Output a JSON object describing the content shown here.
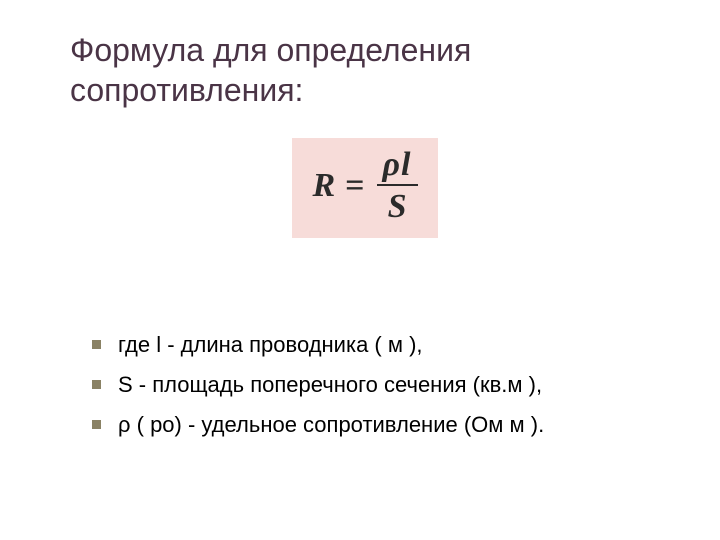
{
  "title_text": "Формула для определения сопротивления:",
  "title_color": "#4a3446",
  "formula": {
    "lhs": "R",
    "eq": "=",
    "numerator": "ρl",
    "denominator": "S",
    "box_bg": "#f7dcd9",
    "text_color": "#2b2b2b",
    "font_family": "Times New Roman"
  },
  "bullet_color": "#8a8265",
  "bullets": [
    "где l - длина проводника ( м ),",
    "S - площадь поперечного сечения (кв.м ),",
    " ρ ( ро) - удельное сопротивление (Ом м )."
  ],
  "body_text_color": "#000000",
  "background_color": "#ffffff"
}
